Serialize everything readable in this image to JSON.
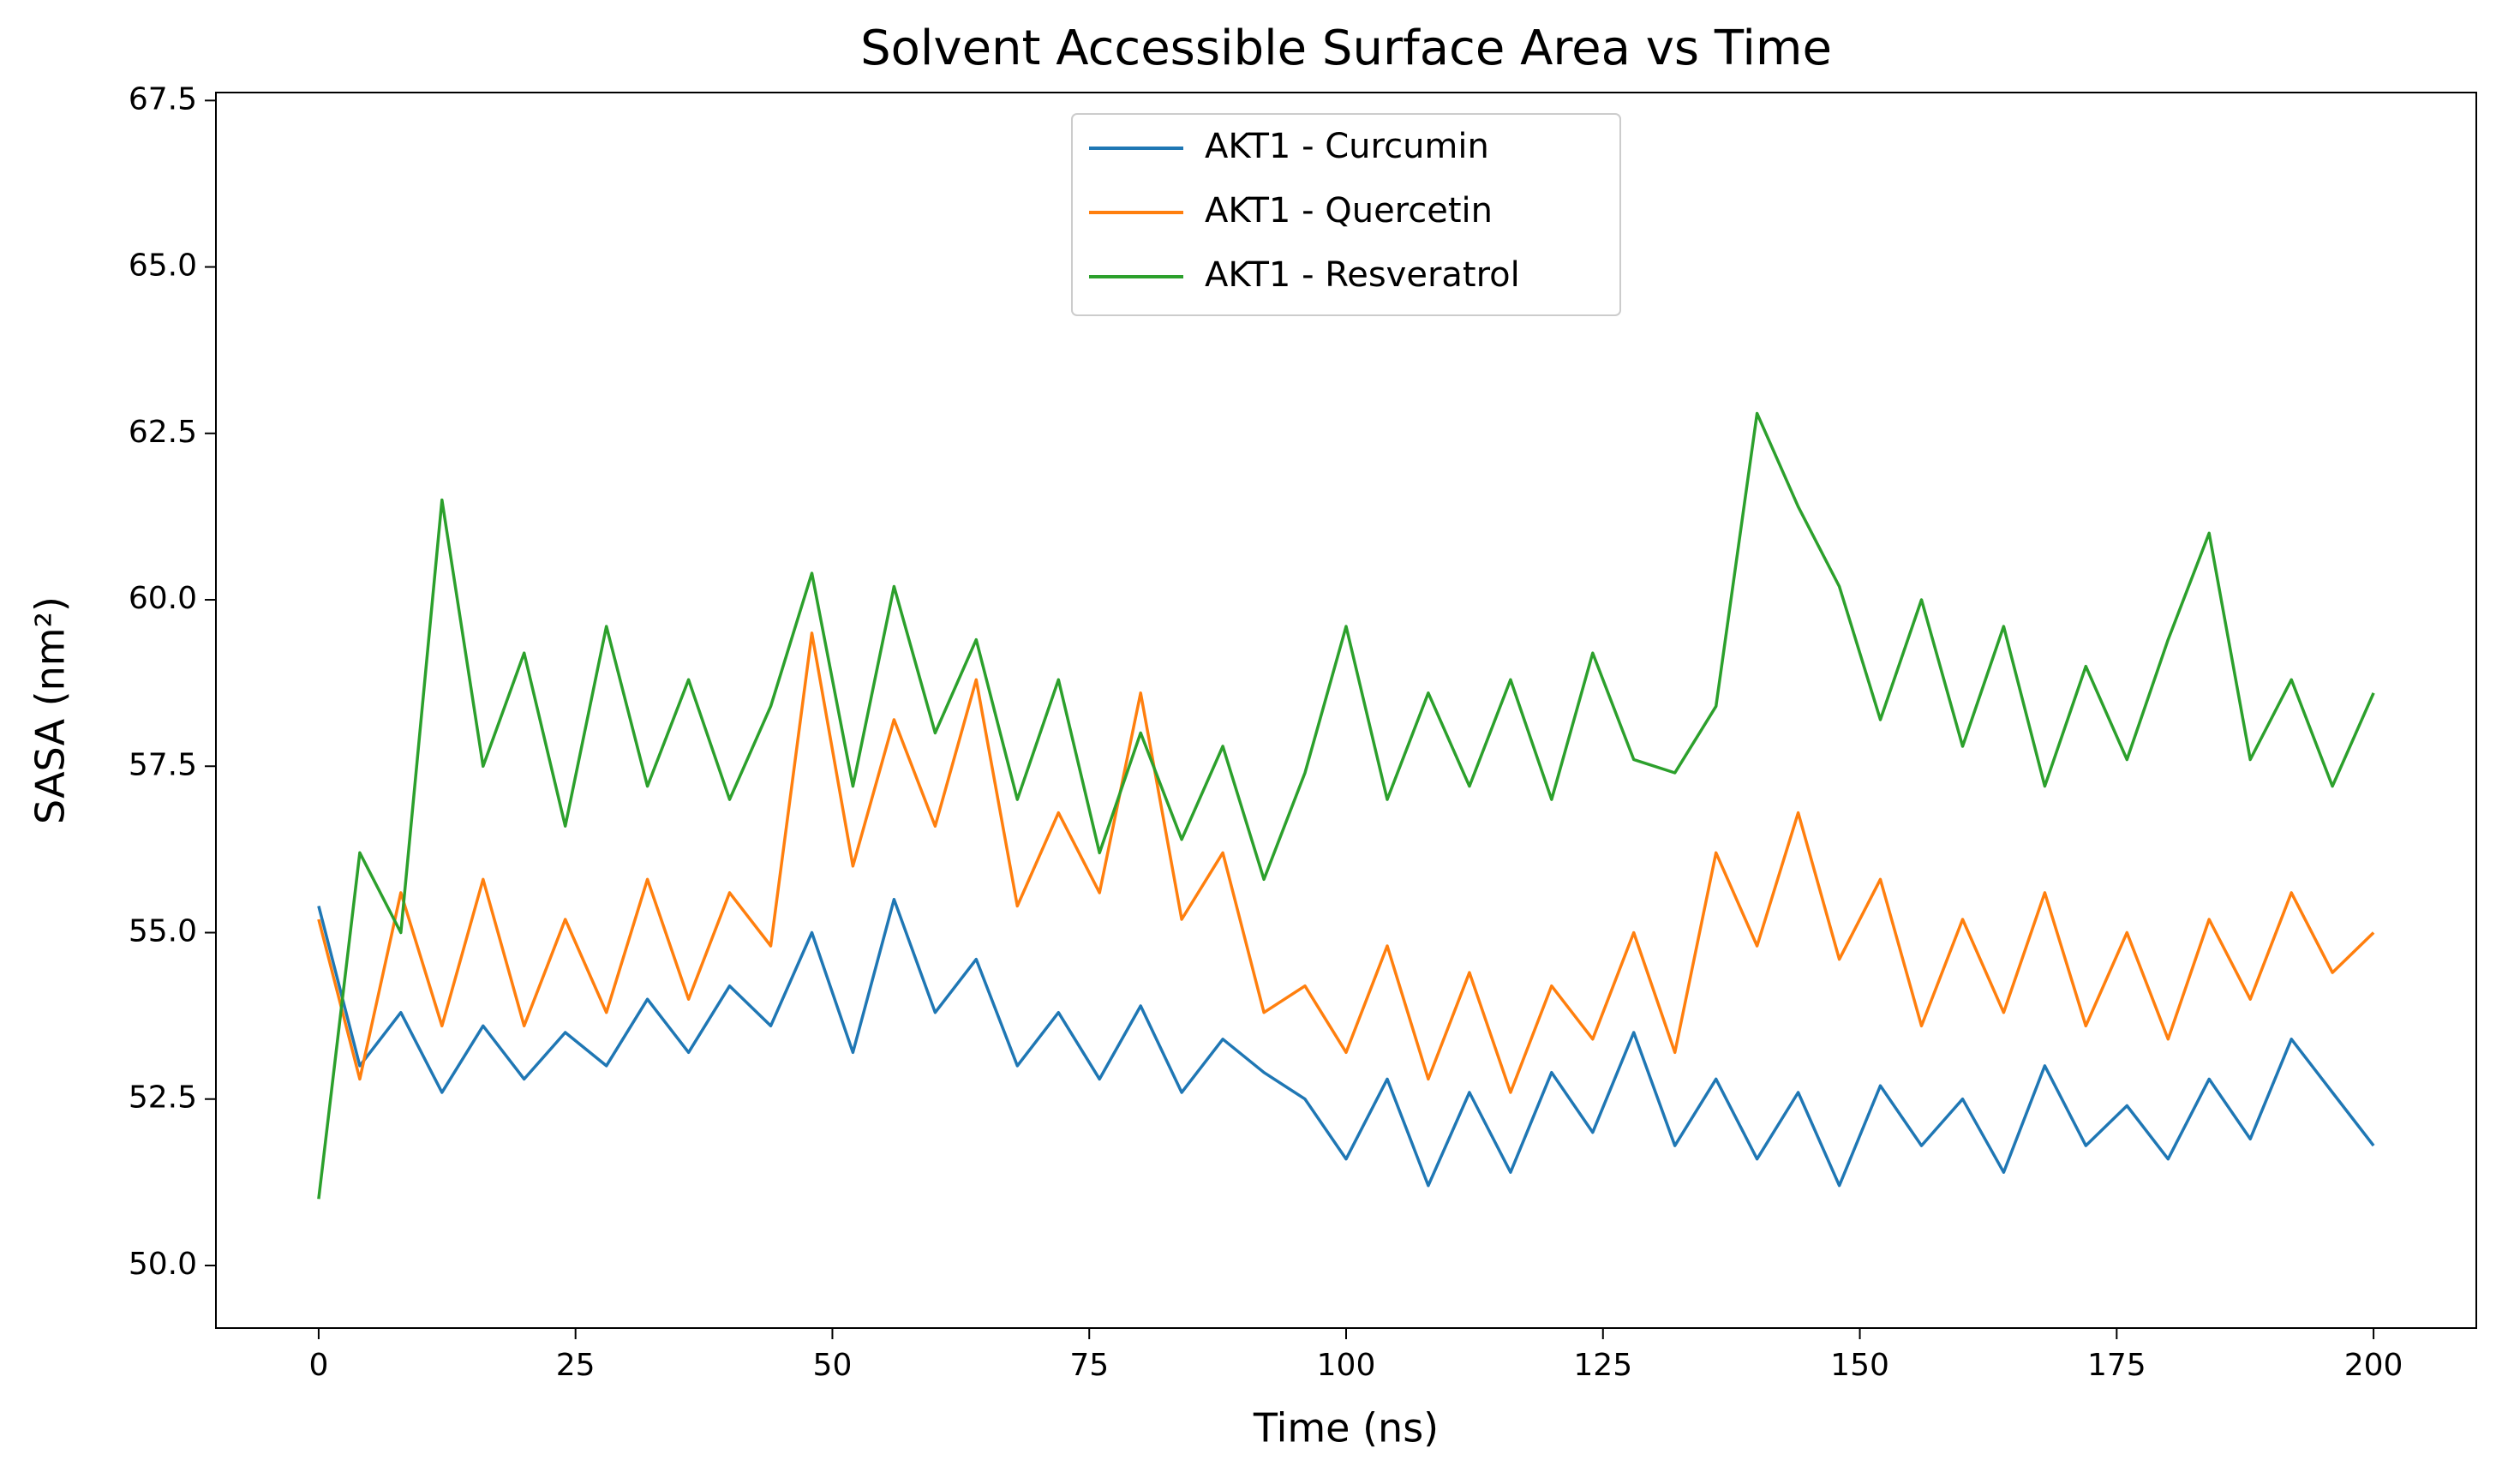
{
  "chart_data": {
    "type": "line",
    "title": "Solvent Accessible Surface Area vs Time",
    "xlabel": "Time (ns)",
    "ylabel": "SASA (nm²)",
    "legend": "upper center",
    "x": [
      0,
      4,
      8,
      12,
      16,
      20,
      24,
      28,
      32,
      36,
      40,
      44,
      48,
      52,
      56,
      60,
      64,
      68,
      72,
      76,
      80,
      84,
      88,
      92,
      96,
      100,
      104,
      108,
      112,
      116,
      120,
      124,
      128,
      132,
      136,
      140,
      144,
      148,
      152,
      156,
      160,
      164,
      168,
      172,
      176,
      180,
      184,
      188,
      192,
      196,
      200
    ],
    "series": [
      {
        "name": "AKT1 - Curcumin",
        "color": "#1f77b4",
        "values": [
          55.4,
          53.0,
          53.8,
          52.6,
          53.6,
          52.8,
          53.5,
          53.0,
          54.0,
          53.2,
          54.2,
          53.6,
          55.0,
          53.2,
          55.5,
          53.8,
          54.6,
          53.0,
          53.8,
          52.8,
          53.9,
          52.6,
          53.4,
          52.9,
          52.5,
          51.6,
          52.8,
          51.2,
          52.6,
          51.4,
          52.9,
          52.0,
          53.5,
          51.8,
          52.8,
          51.6,
          52.6,
          51.2,
          52.7,
          51.8,
          52.5,
          51.4,
          53.0,
          51.8,
          52.4,
          51.6,
          52.8,
          51.9,
          53.4,
          52.6,
          51.8
        ]
      },
      {
        "name": "AKT1 - Quercetin",
        "color": "#ff7f0e",
        "values": [
          55.2,
          52.8,
          55.6,
          53.6,
          55.8,
          53.6,
          55.2,
          53.8,
          55.8,
          54.0,
          55.6,
          54.8,
          59.5,
          56.0,
          58.2,
          56.6,
          58.8,
          55.4,
          56.8,
          55.6,
          58.6,
          55.2,
          56.2,
          53.8,
          54.2,
          53.2,
          54.8,
          52.8,
          54.4,
          52.6,
          54.2,
          53.4,
          55.0,
          53.2,
          56.2,
          54.8,
          56.8,
          54.6,
          55.8,
          53.6,
          55.2,
          53.8,
          55.6,
          53.6,
          55.0,
          53.4,
          55.2,
          54.0,
          55.6,
          54.4,
          55.0
        ]
      },
      {
        "name": "AKT1 - Resveratrol",
        "color": "#2ca02c",
        "values": [
          51.0,
          56.2,
          55.0,
          61.5,
          57.5,
          59.2,
          56.6,
          59.6,
          57.2,
          58.8,
          57.0,
          58.4,
          60.4,
          57.2,
          60.2,
          58.0,
          59.4,
          57.0,
          58.8,
          56.2,
          58.0,
          56.4,
          57.8,
          55.8,
          57.4,
          59.6,
          57.0,
          58.6,
          57.2,
          58.8,
          57.0,
          59.2,
          57.6,
          57.4,
          58.4,
          62.8,
          61.4,
          60.2,
          58.2,
          60.0,
          57.8,
          59.6,
          57.2,
          59.0,
          57.6,
          59.4,
          61.0,
          57.6,
          58.8,
          57.2,
          58.6
        ]
      }
    ],
    "xlim": [
      -10,
      210
    ],
    "xticks": [
      0,
      25,
      50,
      75,
      100,
      125,
      150,
      175,
      200
    ],
    "ylim": [
      49.06,
      67.62
    ],
    "yticks": [
      {
        "value": 50,
        "label": "50.0"
      },
      52.5,
      {
        "value": 55,
        "label": "55.0"
      },
      57.5,
      {
        "value": 60,
        "label": "60.0"
      },
      62.5,
      {
        "value": 65,
        "label": "65.0"
      },
      67.5
    ],
    "grid": false
  }
}
